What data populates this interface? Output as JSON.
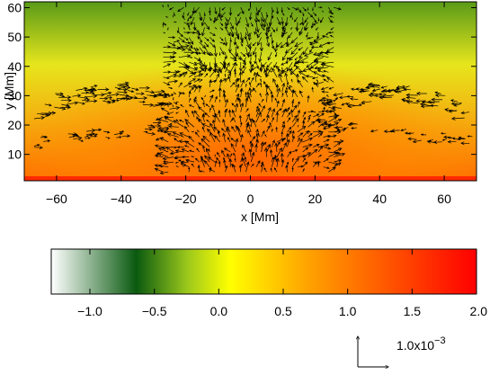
{
  "chart_data": {
    "type": "heatmap",
    "title": "",
    "xlabel": "x [Mm]",
    "ylabel": "y [Mm]",
    "xlim": [
      -70,
      70
    ],
    "ylim": [
      1,
      62
    ],
    "xticks": [
      -60,
      -40,
      -20,
      0,
      20,
      40,
      60
    ],
    "xtick_labels": [
      "−60",
      "−40",
      "−20",
      "0",
      "20",
      "40",
      "60"
    ],
    "yticks": [
      10,
      20,
      30,
      40,
      50,
      60
    ],
    "ytick_labels": [
      "10",
      "20",
      "30",
      "40",
      "50",
      "60"
    ],
    "overlay": "velocity vector field (arrows)",
    "colorbar": {
      "range": [
        -1.3,
        2.0
      ],
      "ticks": [
        -1.0,
        -0.5,
        0.0,
        0.5,
        1.0,
        1.5,
        2.0
      ],
      "tick_labels": [
        "−1.0",
        "−0.5",
        "0.0",
        "0.5",
        "1.0",
        "1.5",
        "2.0"
      ],
      "colors": [
        "#ffffff",
        "#0a5a10",
        "#ffff00",
        "#ff8a00",
        "#ff0000"
      ]
    },
    "reference_vector": {
      "mantissa": "1.0x10",
      "exponent": "−3"
    }
  }
}
